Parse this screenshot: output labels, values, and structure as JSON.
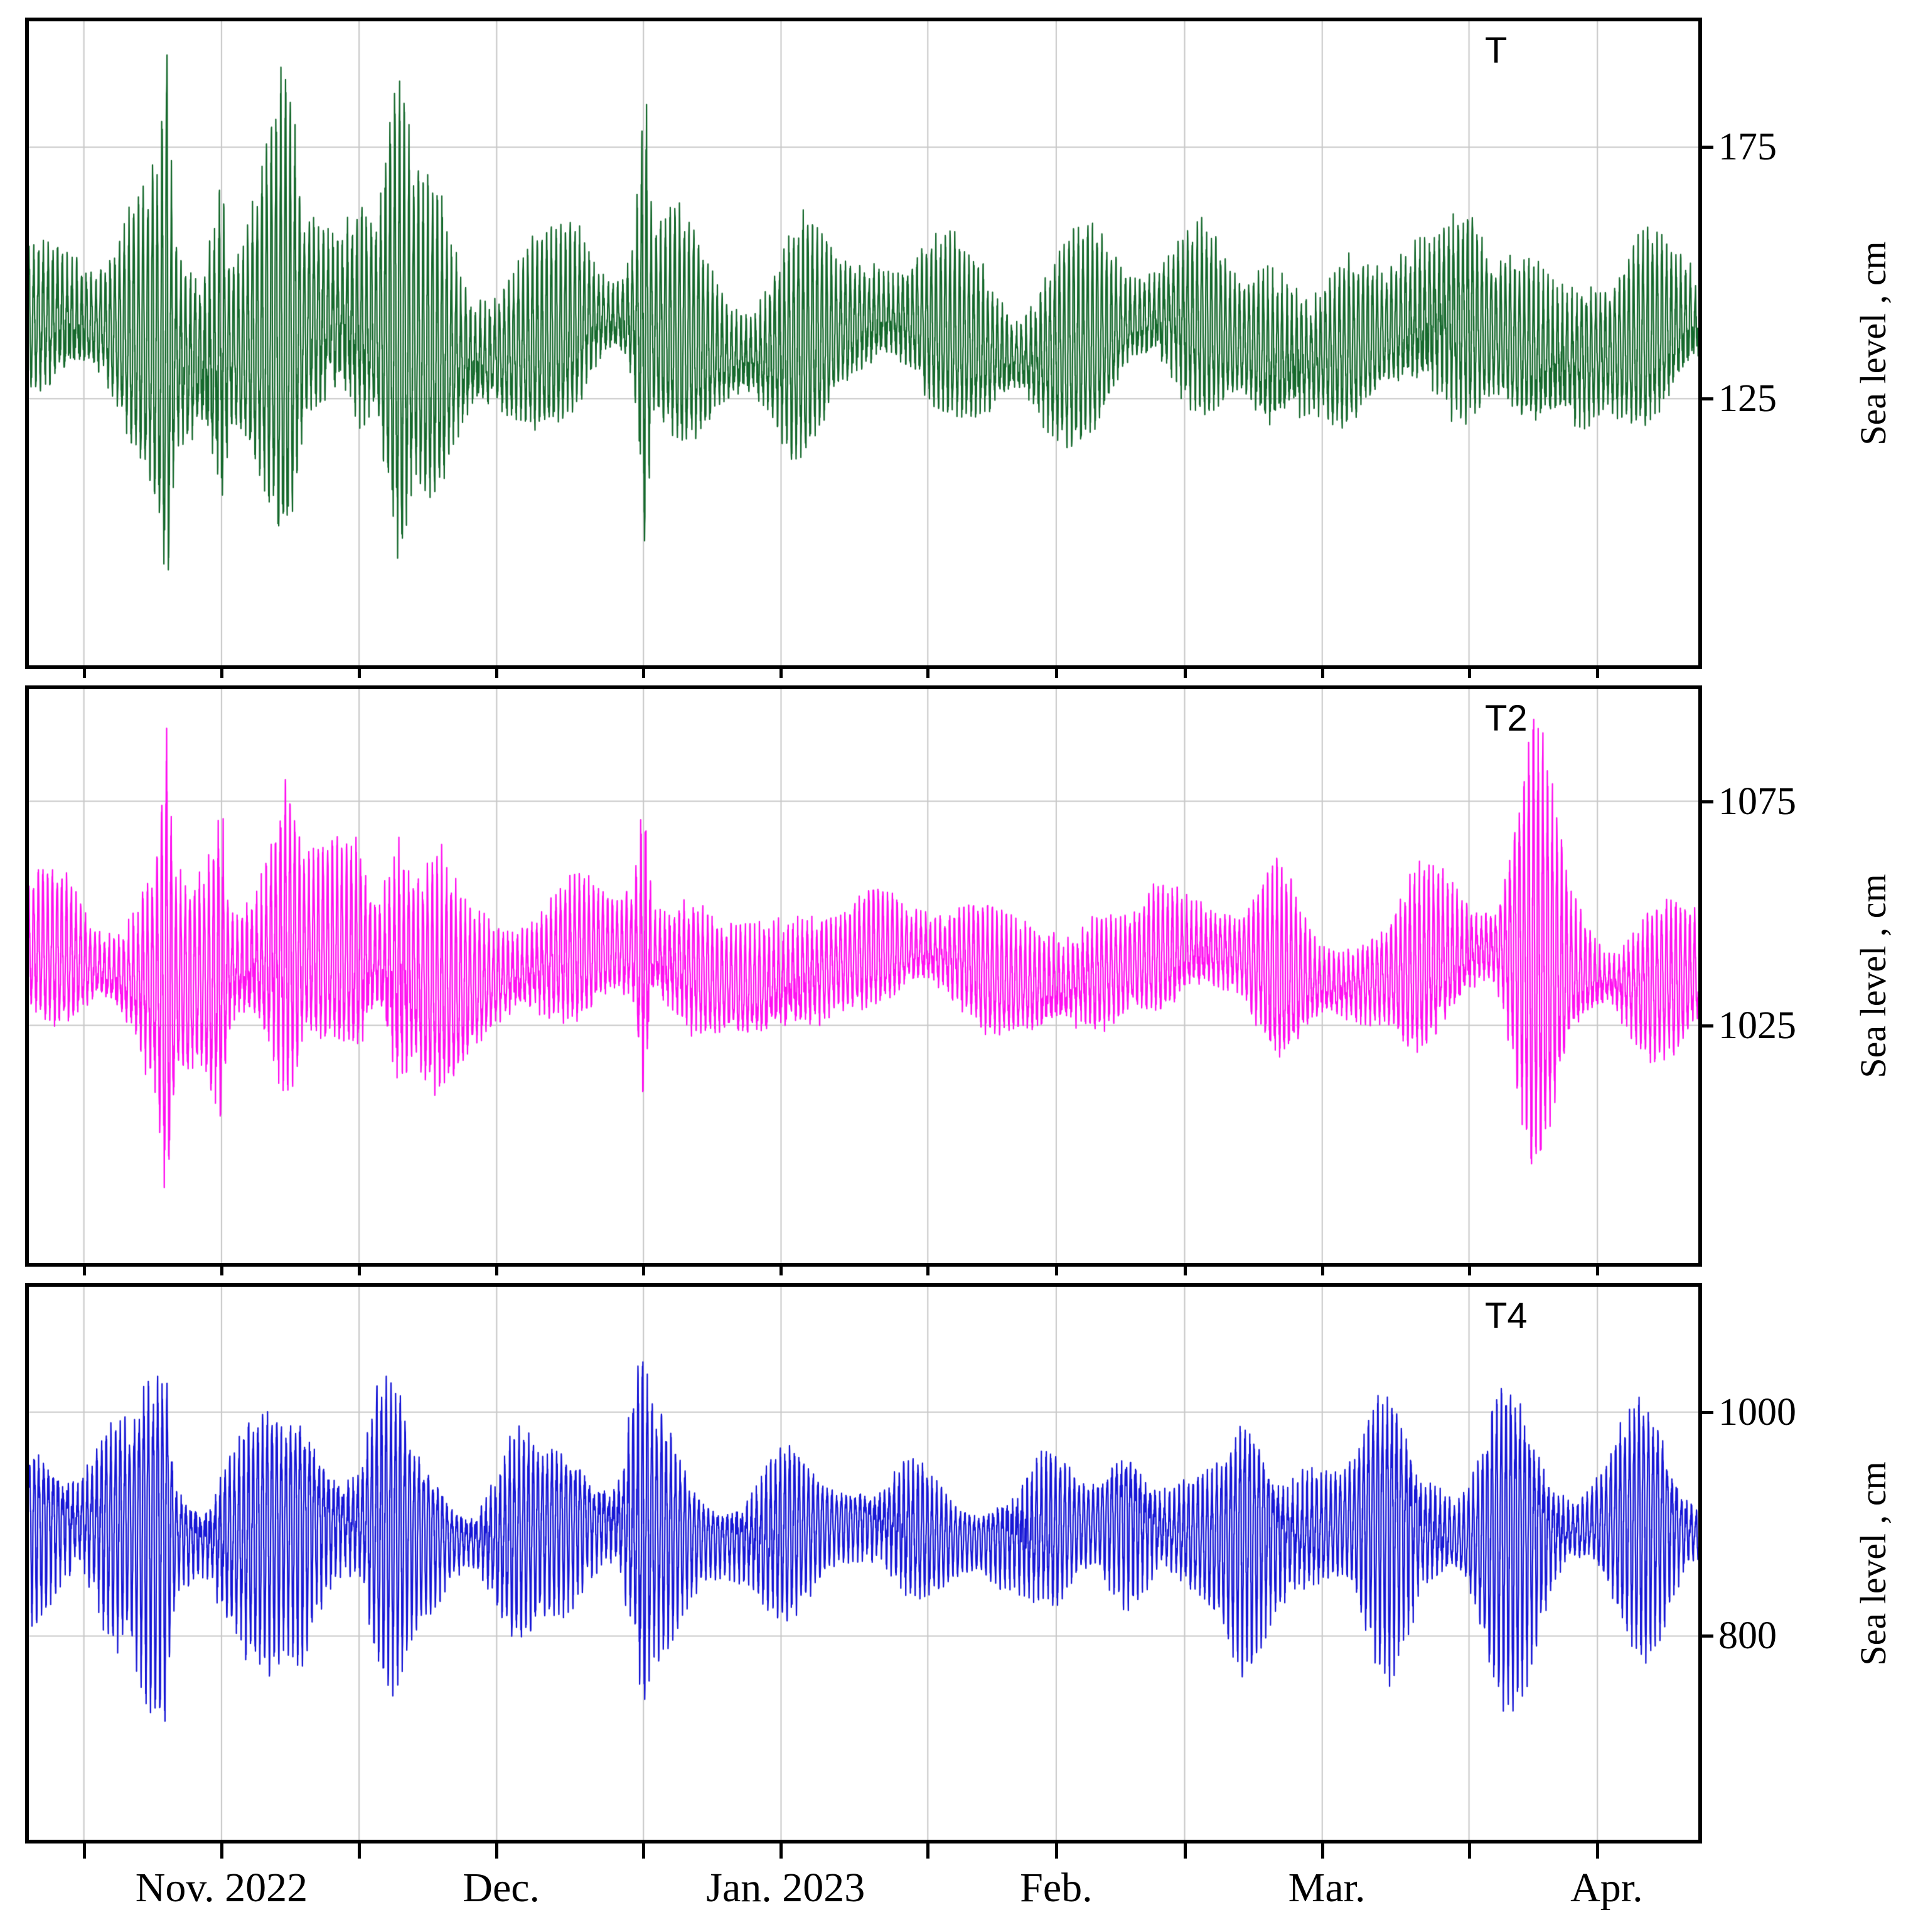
{
  "x_axis": {
    "span_days": 182,
    "grid_days": [
      6,
      21,
      36,
      51,
      67,
      82,
      98,
      112,
      126,
      141,
      157,
      171
    ],
    "month_tick_days": [
      6,
      36,
      67,
      98,
      126,
      157
    ],
    "labels": [
      {
        "text": "Nov. 2022",
        "day": 21
      },
      {
        "text": "Dec.",
        "day": 51.5
      },
      {
        "text": "Jan. 2023",
        "day": 82.5
      },
      {
        "text": "Feb.",
        "day": 112
      },
      {
        "text": "Mar.",
        "day": 141.5
      },
      {
        "text": "Apr.",
        "day": 172
      }
    ]
  },
  "grid_color": "#c8c8c8",
  "chart_data": [
    {
      "type": "line",
      "panel_label": "T",
      "ylabel": "Sea level , cm",
      "yticks": [
        125,
        175
      ],
      "ylim": [
        72,
        200
      ],
      "color": "#15692c",
      "baseline_cm": 137,
      "slow_cycle": {
        "amp_cm": 4,
        "period_days": 30,
        "phase": 0.8
      },
      "tide": {
        "periods_days": [
          0.5175,
          0.5,
          0.2587
        ],
        "weights": [
          0.62,
          0.28,
          0.13
        ],
        "phases": [
          1.1,
          2.3,
          0.4
        ],
        "noise": 0.2
      },
      "neap": {
        "depth": 0.15,
        "period_days": 13.66,
        "phase": 0.6
      },
      "seed": 3,
      "envelope_days": [
        0,
        4,
        8,
        11,
        14,
        15,
        16,
        19,
        21,
        22,
        25,
        28,
        30,
        33,
        36,
        38,
        40,
        42,
        45,
        48,
        52,
        56,
        60,
        64,
        66,
        67,
        68,
        72,
        76,
        80,
        84,
        88,
        92,
        96,
        100,
        104,
        108,
        112,
        116,
        120,
        124,
        128,
        132,
        136,
        140,
        144,
        148,
        152,
        156,
        160,
        164,
        168,
        172,
        176,
        180,
        182
      ],
      "envelope_amp_cm": [
        14,
        20,
        15,
        24,
        30,
        56,
        22,
        26,
        58,
        24,
        30,
        44,
        20,
        28,
        40,
        24,
        50,
        26,
        30,
        22,
        18,
        16,
        20,
        14,
        20,
        62,
        18,
        20,
        15,
        18,
        22,
        14,
        18,
        12,
        16,
        20,
        13,
        18,
        22,
        12,
        16,
        20,
        12,
        24,
        14,
        18,
        12,
        22,
        26,
        14,
        18,
        22,
        14,
        20,
        16,
        14
      ]
    },
    {
      "type": "line",
      "panel_label": "T2",
      "ylabel": "Sea level , cm",
      "yticks": [
        1025,
        1075
      ],
      "ylim": [
        972,
        1100
      ],
      "color": "#ff10f0",
      "baseline_cm": 1038,
      "slow_cycle": {
        "amp_cm": 4,
        "period_days": 32,
        "phase": 1.7
      },
      "tide": {
        "periods_days": [
          0.5175,
          0.5,
          0.2587
        ],
        "weights": [
          0.62,
          0.28,
          0.13
        ],
        "phases": [
          1.8,
          0.9,
          2.1
        ],
        "noise": 0.2
      },
      "neap": {
        "depth": 0.15,
        "period_days": 13.66,
        "phase": 1.1
      },
      "seed": 7,
      "envelope_days": [
        0,
        4,
        8,
        11,
        14,
        15,
        16,
        19,
        21,
        22,
        25,
        28,
        30,
        33,
        36,
        38,
        40,
        42,
        45,
        48,
        52,
        56,
        60,
        64,
        66,
        67,
        68,
        72,
        76,
        80,
        84,
        88,
        92,
        96,
        100,
        104,
        108,
        112,
        116,
        120,
        124,
        128,
        132,
        136,
        140,
        144,
        148,
        152,
        156,
        160,
        164,
        168,
        172,
        176,
        180,
        182
      ],
      "envelope_amp_cm": [
        12,
        17,
        13,
        20,
        26,
        48,
        19,
        22,
        50,
        20,
        26,
        38,
        17,
        24,
        34,
        20,
        44,
        22,
        26,
        19,
        15,
        14,
        17,
        12,
        17,
        55,
        15,
        17,
        13,
        15,
        19,
        12,
        15,
        10,
        14,
        17,
        11,
        15,
        19,
        10,
        14,
        17,
        10,
        20,
        12,
        15,
        10,
        19,
        22,
        12,
        45,
        19,
        12,
        17,
        14,
        12
      ]
    },
    {
      "type": "line",
      "panel_label": "T4",
      "ylabel": "Sea level , cm",
      "yticks": [
        800,
        1000
      ],
      "ylim": [
        618,
        1112
      ],
      "color": "#1717d6",
      "baseline_cm": 893,
      "slow_cycle": {
        "amp_cm": 8,
        "period_days": 28,
        "phase": 0.2
      },
      "tide": {
        "periods_days": [
          0.5175,
          0.5,
          0.2587
        ],
        "weights": [
          0.62,
          0.28,
          0.13
        ],
        "phases": [
          0.4,
          1.6,
          2.9
        ],
        "noise": 0.18
      },
      "neap": {
        "depth": 0.4,
        "period_days": 13.66,
        "phase": 2.0
      },
      "seed": 11,
      "envelope_days": [
        0,
        4,
        8,
        11,
        14,
        15,
        16,
        19,
        21,
        22,
        25,
        28,
        30,
        33,
        36,
        38,
        40,
        42,
        45,
        48,
        52,
        56,
        60,
        64,
        66,
        67,
        68,
        72,
        76,
        80,
        84,
        88,
        92,
        96,
        100,
        104,
        108,
        112,
        116,
        120,
        124,
        128,
        132,
        136,
        140,
        144,
        148,
        152,
        156,
        160,
        164,
        168,
        172,
        176,
        180,
        182
      ],
      "envelope_amp_cm": [
        60,
        110,
        140,
        70,
        120,
        150,
        60,
        90,
        150,
        120,
        85,
        70,
        130,
        150,
        80,
        120,
        95,
        60,
        75,
        65,
        85,
        55,
        120,
        60,
        140,
        150,
        90,
        65,
        55,
        75,
        65,
        55,
        45,
        65,
        55,
        35,
        65,
        85,
        55,
        75,
        45,
        95,
        120,
        65,
        90,
        75,
        110,
        85,
        65,
        120,
        95,
        65,
        75,
        85,
        65,
        60
      ]
    }
  ]
}
